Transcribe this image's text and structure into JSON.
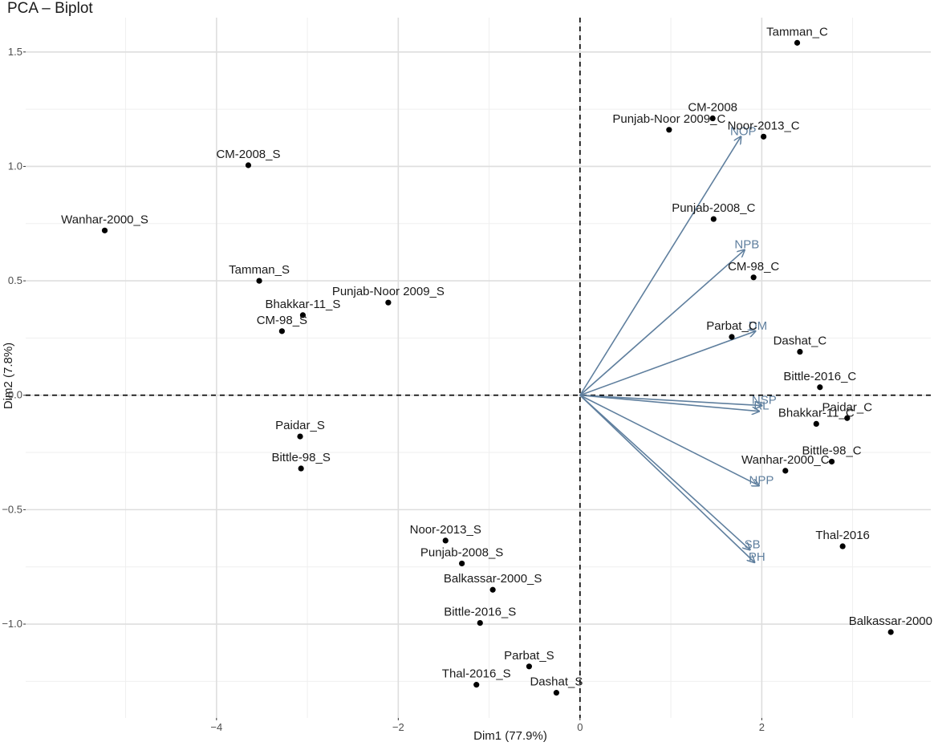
{
  "chart_data": {
    "type": "scatter",
    "title": "PCA – Biplot",
    "xlabel": "Dim1 (77.9%)",
    "ylabel": "Dim2 (7.8%)",
    "xlim": [
      -6.1,
      3.86
    ],
    "ylim": [
      -1.41,
      1.65
    ],
    "xticks": [
      -4,
      -2,
      0,
      2
    ],
    "xtick_labels": [
      "−4",
      "−2",
      "0",
      "2"
    ],
    "yticks": [
      -1.0,
      -0.5,
      0.0,
      0.5,
      1.0,
      1.5
    ],
    "ytick_labels": [
      "−1.0",
      "−0.5",
      "0.0",
      "0.5",
      "1.0",
      "1.5"
    ],
    "grid": true,
    "colors": {
      "arrow": "#5f7f9e",
      "point": "#000000",
      "grid_major": "#dedede",
      "grid_minor": "#efefef"
    },
    "points": [
      {
        "label": "Tamman_C",
        "x": 2.39,
        "y": 1.54
      },
      {
        "label": "CM-2008",
        "x": 1.46,
        "y": 1.21
      },
      {
        "label": "Punjab-Noor 2009_C",
        "x": 0.98,
        "y": 1.16
      },
      {
        "label": "Noor-2013_C",
        "x": 2.02,
        "y": 1.13
      },
      {
        "label": "CM-2008_S",
        "x": -3.65,
        "y": 1.005
      },
      {
        "label": "Wanhar-2000_S",
        "x": -5.23,
        "y": 0.72
      },
      {
        "label": "Punjab-2008_C",
        "x": 1.47,
        "y": 0.77
      },
      {
        "label": "CM-98_C",
        "x": 1.91,
        "y": 0.515
      },
      {
        "label": "Tamman_S",
        "x": -3.53,
        "y": 0.5
      },
      {
        "label": "Punjab-Noor 2009_S",
        "x": -2.11,
        "y": 0.405
      },
      {
        "label": "Bhakkar-11_S",
        "x": -3.05,
        "y": 0.35
      },
      {
        "label": "CM-98_S",
        "x": -3.28,
        "y": 0.28
      },
      {
        "label": "Parbat_C",
        "x": 1.67,
        "y": 0.255
      },
      {
        "label": "Dashat_C",
        "x": 2.42,
        "y": 0.19
      },
      {
        "label": "Bittle-2016_C",
        "x": 2.64,
        "y": 0.035
      },
      {
        "label": "Paidar_C",
        "x": 2.94,
        "y": -0.1
      },
      {
        "label": "Bhakkar-11_C",
        "x": 2.6,
        "y": -0.125
      },
      {
        "label": "Paidar_S",
        "x": -3.08,
        "y": -0.18
      },
      {
        "label": "Bittle-98_C",
        "x": 2.77,
        "y": -0.29
      },
      {
        "label": "Wanhar-2000_C",
        "x": 2.26,
        "y": -0.33
      },
      {
        "label": "Bittle-98_S",
        "x": -3.07,
        "y": -0.32
      },
      {
        "label": "Thal-2016",
        "x": 2.89,
        "y": -0.66
      },
      {
        "label": "Noor-2013_S",
        "x": -1.48,
        "y": -0.635
      },
      {
        "label": "Punjab-2008_S",
        "x": -1.3,
        "y": -0.735
      },
      {
        "label": "Balkassar-2000_S",
        "x": -0.96,
        "y": -0.85
      },
      {
        "label": "Bittle-2016_S",
        "x": -1.1,
        "y": -0.995
      },
      {
        "label": "Balkassar-2000",
        "x": 3.42,
        "y": -1.035
      },
      {
        "label": "Parbat_S",
        "x": -0.56,
        "y": -1.185
      },
      {
        "label": "Thal-2016_S",
        "x": -1.14,
        "y": -1.265
      },
      {
        "label": "Dashat_S",
        "x": -0.26,
        "y": -1.3
      }
    ],
    "variables": [
      {
        "label": "NOP",
        "x": 1.77,
        "y": 1.13
      },
      {
        "label": "NPB",
        "x": 1.81,
        "y": 0.635
      },
      {
        "label": "DM",
        "x": 1.93,
        "y": 0.28
      },
      {
        "label": "NSP",
        "x": 2.0,
        "y": -0.045
      },
      {
        "label": "RL",
        "x": 1.97,
        "y": -0.07
      },
      {
        "label": "NPP",
        "x": 1.97,
        "y": -0.395
      },
      {
        "label": "SB",
        "x": 1.87,
        "y": -0.675
      },
      {
        "label": "PH",
        "x": 1.92,
        "y": -0.73
      }
    ]
  }
}
